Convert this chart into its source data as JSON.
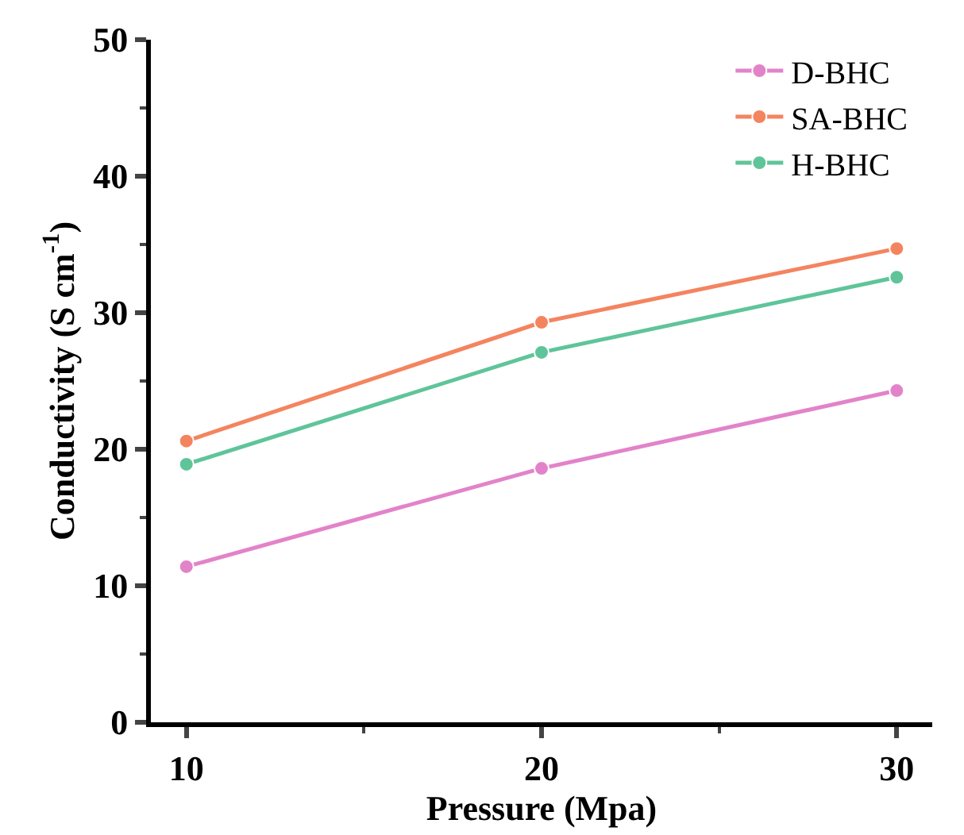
{
  "chart_data": {
    "type": "line",
    "xlabel": "Pressure (Mpa)",
    "ylabel": "Conductivity (S cm$^{-1}$)",
    "x": [
      10,
      20,
      30
    ],
    "series": [
      {
        "name": "D-BHC",
        "color": "#e283c9",
        "values": [
          11.4,
          18.6,
          24.3
        ]
      },
      {
        "name": "SA-BHC",
        "color": "#f4845f",
        "values": [
          20.6,
          29.3,
          34.7
        ]
      },
      {
        "name": "H-BHC",
        "color": "#5fc49a",
        "values": [
          18.9,
          27.1,
          32.6
        ]
      }
    ],
    "xlim": [
      9,
      31
    ],
    "xticks": [
      10,
      20,
      30
    ],
    "ylim": [
      0,
      50
    ],
    "yticks": [
      0,
      10,
      20,
      30,
      40,
      50
    ],
    "legend": "top right",
    "marker": "circle",
    "line_style": "solid"
  }
}
